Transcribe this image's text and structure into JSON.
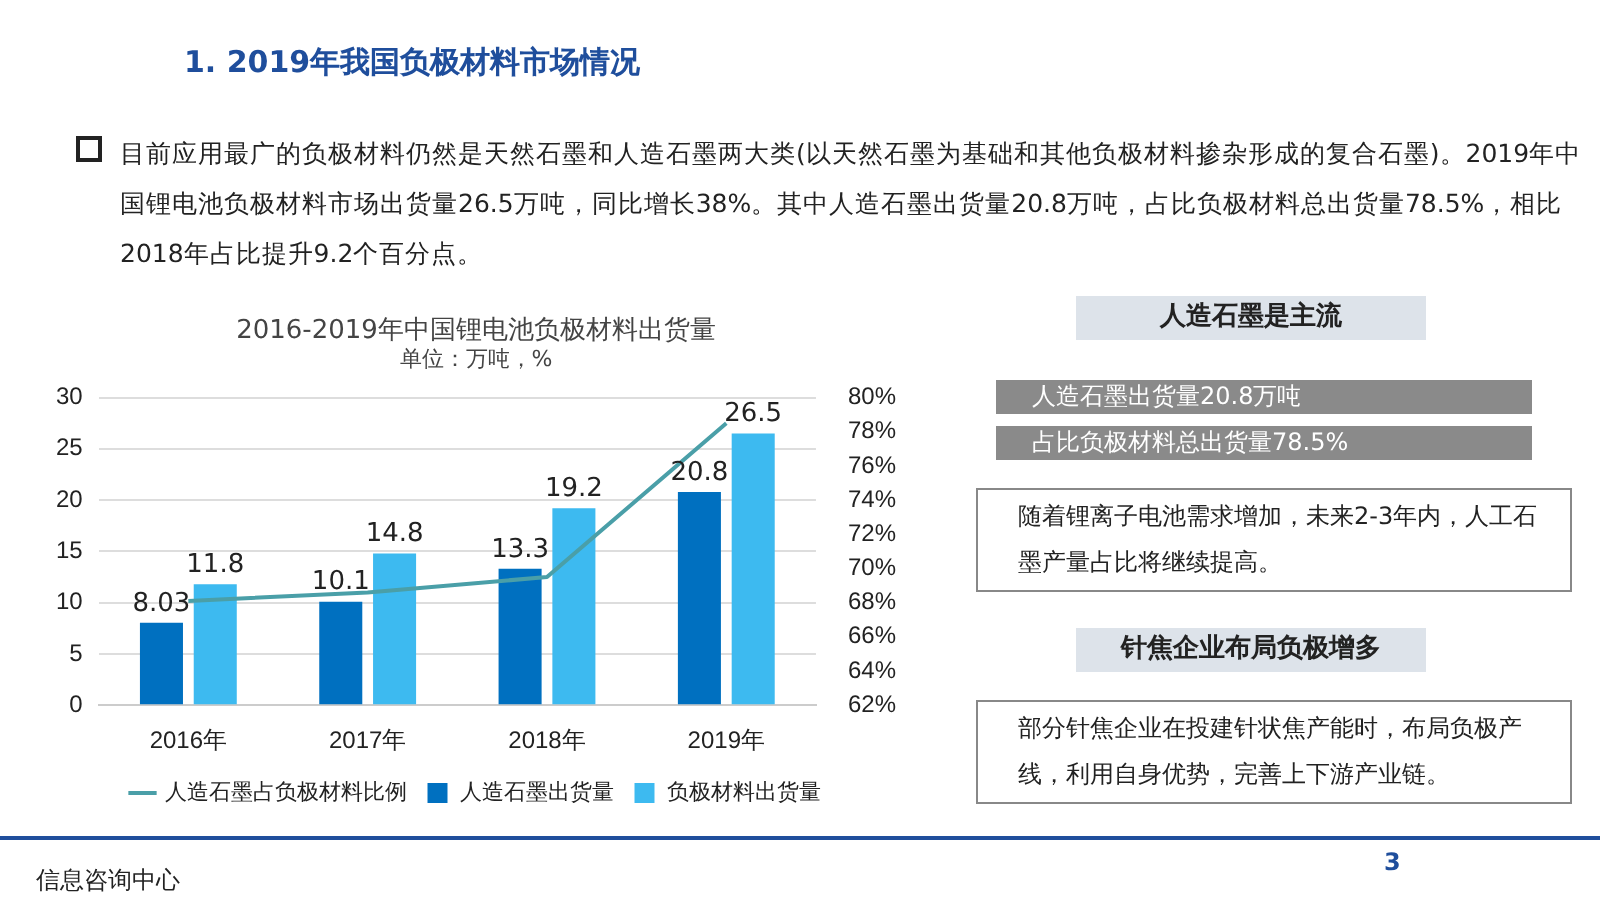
{
  "chart_data": {
    "type": "bar",
    "title": "2016-2019年中国锂电池负极材料出货量",
    "subtitle": "单位：万吨，%",
    "categories": [
      "2016年",
      "2017年",
      "2018年",
      "2019年"
    ],
    "series": [
      {
        "name": "人造石墨出货量",
        "color": "#0070c0",
        "values": [
          8.03,
          10.1,
          13.3,
          20.8
        ],
        "value_labels": [
          "8.03",
          "10.1",
          "13.3",
          "20.8"
        ]
      },
      {
        "name": "负极材料出货量",
        "color": "#3dbaf0",
        "values": [
          11.8,
          14.8,
          19.2,
          26.5
        ],
        "value_labels": [
          "11.8",
          "14.8",
          "19.2",
          "26.5"
        ]
      },
      {
        "name": "人造石墨占负极材料比例",
        "type": "line",
        "axis": "y2",
        "color": "#4a9fa8",
        "values": [
          68.1,
          68.6,
          69.5,
          78.5
        ]
      }
    ],
    "ylim": [
      0,
      30
    ],
    "yticks": [
      0,
      5,
      10,
      15,
      20,
      25,
      30
    ],
    "y2lim": [
      62,
      80
    ],
    "y2ticks": [
      {
        "value": 62,
        "label": "62%"
      },
      {
        "value": 64,
        "label": "64%"
      },
      {
        "value": 66,
        "label": "66%"
      },
      {
        "value": 68,
        "label": "68%"
      },
      {
        "value": 70,
        "label": "70%"
      },
      {
        "value": 72,
        "label": "72%"
      },
      {
        "value": 74,
        "label": "74%"
      },
      {
        "value": 76,
        "label": "76%"
      },
      {
        "value": 78,
        "label": "78%"
      },
      {
        "value": 80,
        "label": "80%"
      }
    ],
    "grid": "y",
    "legend": "bottom",
    "marker": "none",
    "annotations": [
      "1. 2019年我国负极材料市场情况",
      "目前应用最广的负极材料仍然是天然石墨和人造石墨两大类(以天然石墨为基础和其他负极材料掺杂形成的复合石墨)。2019年中国锂电池负极材料市场出货量26.5万吨，同比增长38%。其中人造石墨出货量20.8万吨，占比负极材料总出货量78.5%，相比2018年占比提升9.2个百分点。",
      "人造石墨是主流",
      "人造石墨出货量20.8万吨",
      "占比负极材料总出货量78.5%",
      "随着锂离子电池需求增加，未来2-3年内，人工石墨产量占比将继续提高。",
      "针焦企业布局负极增多",
      "部分针焦企业在投建针状焦产能时，布局负极产线，利用自身优势，完善上下游产业链。",
      "信息咨询中心",
      "3"
    ]
  }
}
